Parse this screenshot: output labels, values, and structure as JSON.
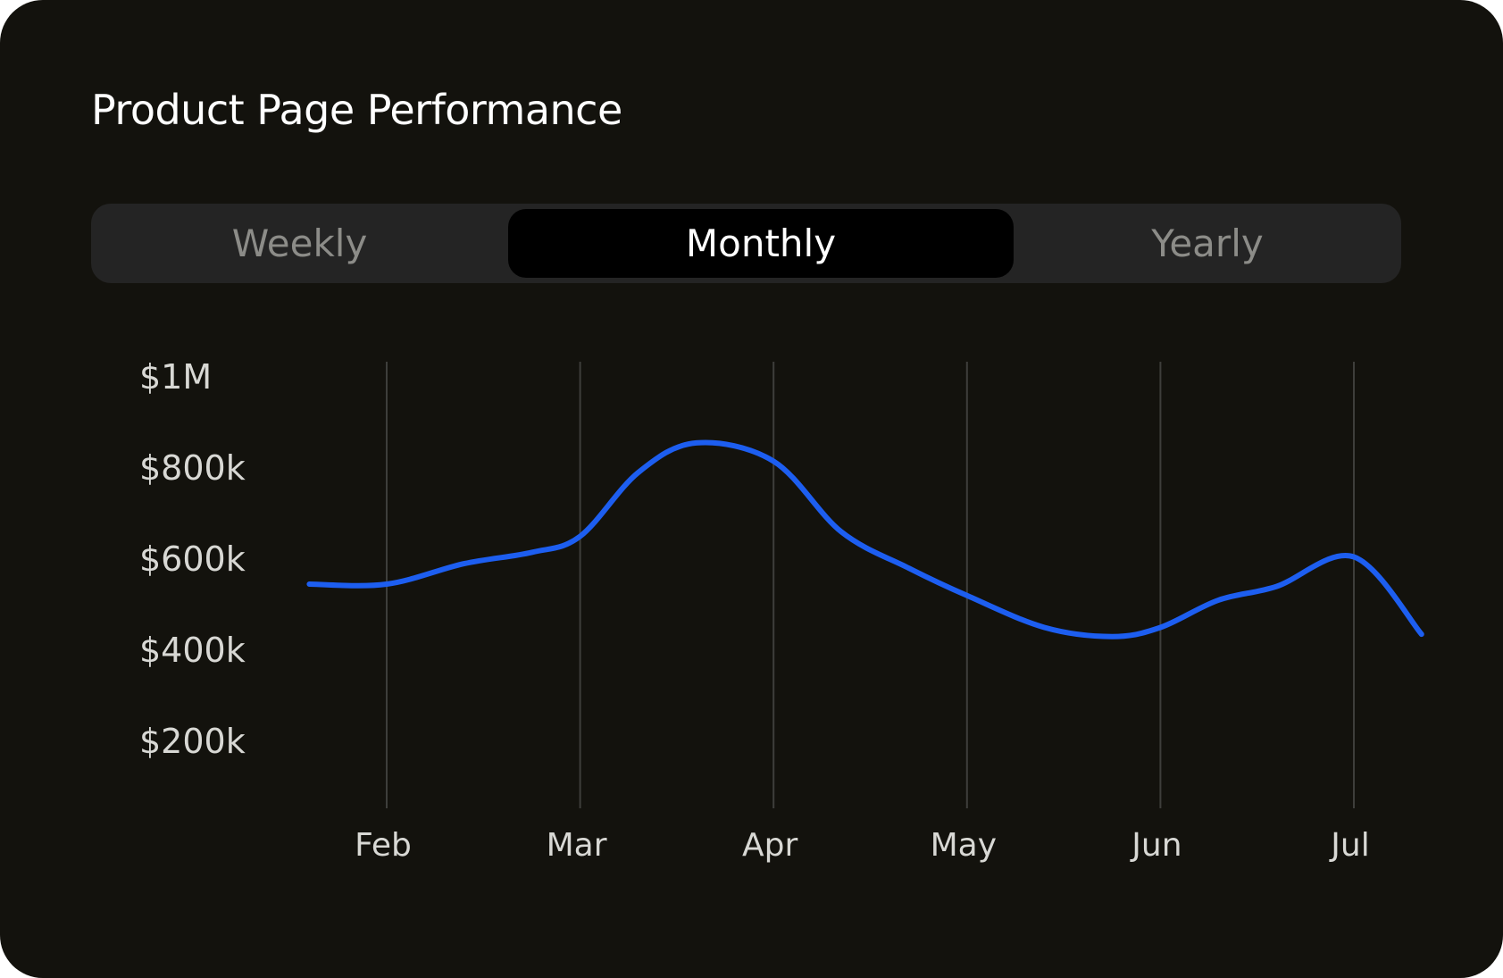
{
  "card": {
    "title": "Product Page Performance"
  },
  "toggle": {
    "options": [
      "Weekly",
      "Monthly",
      "Yearly"
    ],
    "selected": "Monthly"
  },
  "colors": {
    "background": "#13120d",
    "line": "#1d5ef0",
    "gridline": "#3e3e3b",
    "selected_tab": "#000000",
    "tab_track": "#242424"
  },
  "chart_data": {
    "type": "line",
    "categories": [
      "Feb",
      "Mar",
      "Apr",
      "May",
      "Jun",
      "Jul"
    ],
    "yticks": [
      "$1M",
      "$800k",
      "$600k",
      "$400k",
      "$200k"
    ],
    "ytick_values": [
      1000000,
      800000,
      600000,
      400000,
      200000
    ],
    "ylim": [
      0,
      1000000
    ],
    "grid": "vertical",
    "legend": "none",
    "series": [
      {
        "x": [
          0.6,
          1.0,
          1.4,
          1.75,
          2.0,
          2.3,
          2.6,
          3.0,
          3.35,
          3.7,
          4.0,
          4.4,
          4.75,
          5.0,
          5.3,
          5.6,
          6.0,
          6.35
        ],
        "values": [
          545000,
          545000,
          590000,
          615000,
          650000,
          790000,
          855000,
          815000,
          660000,
          580000,
          520000,
          450000,
          430000,
          450000,
          510000,
          540000,
          605000,
          435000
        ]
      }
    ]
  }
}
